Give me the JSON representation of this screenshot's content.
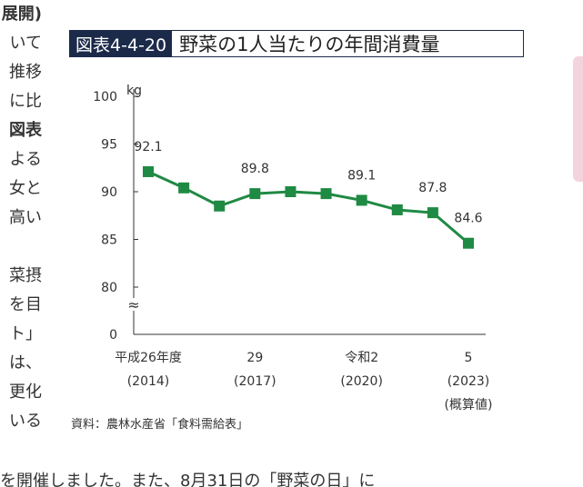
{
  "background_text": {
    "lines": [
      "展開)",
      "いて",
      "推移",
      "に比",
      "図表",
      "よる",
      "女と",
      "高い",
      "",
      "菜摂",
      "を目",
      "ト」",
      "は、",
      "更化",
      "いる"
    ],
    "bottom_line": "を開催しました。また、8月31日の「野菜の日」に"
  },
  "figure": {
    "number": "図表4-4-20",
    "title": "野菜の1人当たりの年間消費量",
    "source": "資料：農林水産省「食料需給表」"
  },
  "chart_data": {
    "type": "line",
    "ylabel": "kg",
    "y_ticks": [
      "100",
      "95",
      "90",
      "85",
      "80",
      "0"
    ],
    "axis_break": "≈",
    "x_tick_labels": [
      {
        "era": "平成26年度",
        "year": "(2014)"
      },
      {
        "era": "29",
        "year": "(2017)"
      },
      {
        "era": "令和2",
        "year": "(2020)"
      },
      {
        "era": "5",
        "year": "(2023)",
        "note": "(概算値)"
      }
    ],
    "series": [
      {
        "x": [
          "2014",
          "2015",
          "2016",
          "2017",
          "2018",
          "2019",
          "2020",
          "2021",
          "2022",
          "2023"
        ],
        "values": [
          92.1,
          90.4,
          88.5,
          89.8,
          90.0,
          89.8,
          89.1,
          88.1,
          87.8,
          84.6
        ],
        "data_labels": [
          "92.1",
          null,
          null,
          "89.8",
          null,
          null,
          "89.1",
          null,
          "87.8",
          "84.6"
        ]
      }
    ],
    "ylim": [
      80,
      100
    ],
    "line_color": "#1f8a43"
  }
}
